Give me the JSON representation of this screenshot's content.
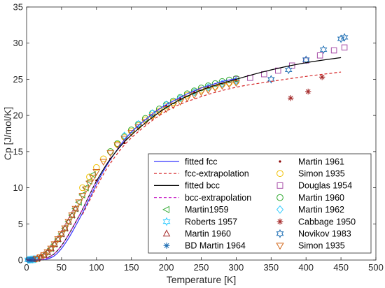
{
  "chart_data": {
    "type": "scatter",
    "xlabel": "Temperature [K]",
    "ylabel": "Cp [J/mol/K]",
    "xlim": [
      0,
      500
    ],
    "ylim": [
      0,
      35
    ],
    "xticks": [
      "0",
      "50",
      "100",
      "150",
      "200",
      "250",
      "300",
      "350",
      "400",
      "450",
      "500"
    ],
    "yticks": [
      "0",
      "5",
      "10",
      "15",
      "20",
      "25",
      "30",
      "35"
    ],
    "grid": false,
    "legend_position": "bottom-right",
    "series": [
      {
        "name": "fitted fcc",
        "kind": "line",
        "dash": "solid",
        "color": "#3333ff",
        "x": [
          0,
          20,
          30,
          40,
          50,
          60,
          70,
          80,
          90,
          100,
          110,
          120,
          130,
          140,
          150,
          160,
          170,
          180,
          190,
          200,
          210,
          220,
          230,
          240,
          250,
          260,
          270,
          280,
          290,
          300
        ],
        "y": [
          0,
          0.02,
          0.15,
          0.6,
          1.6,
          3.0,
          4.7,
          6.5,
          8.5,
          10.5,
          12.3,
          13.9,
          15.3,
          16.6,
          17.7,
          18.6,
          19.4,
          20.2,
          20.9,
          21.5,
          22.0,
          22.5,
          23.0,
          23.4,
          23.8,
          24.1,
          24.4,
          24.7,
          24.9,
          25.1
        ]
      },
      {
        "name": "fcc-extrapolation",
        "kind": "line",
        "dash": "dashed",
        "color": "#d62728",
        "x": [
          80,
          90,
          100,
          120,
          150,
          200,
          250,
          300,
          350,
          400,
          450
        ],
        "y": [
          6.3,
          8.2,
          10.1,
          13.4,
          16.9,
          20.6,
          22.6,
          23.9,
          24.7,
          25.4,
          26.0
        ]
      },
      {
        "name": "fitted bcc",
        "kind": "line",
        "dash": "solid",
        "color": "#000000",
        "x": [
          30,
          40,
          50,
          60,
          70,
          80,
          90,
          100,
          120,
          150,
          200,
          250,
          300,
          350,
          400,
          450
        ],
        "y": [
          0.3,
          0.9,
          2.0,
          3.5,
          5.2,
          7.0,
          9.0,
          10.9,
          14.0,
          17.3,
          21.1,
          23.5,
          25.0,
          26.3,
          27.3,
          28.0
        ]
      },
      {
        "name": "bcc-extrapolation",
        "kind": "line",
        "dash": "dashed",
        "color": "#cc33cc",
        "x": [
          0,
          20,
          30,
          40,
          50,
          60,
          70,
          80,
          90,
          100
        ],
        "y": [
          0,
          0.05,
          0.3,
          0.9,
          2.0,
          3.5,
          5.2,
          7.0,
          9.0,
          10.9
        ]
      },
      {
        "name": "Martin1959",
        "kind": "marker",
        "marker": "triangle-left",
        "color": "#33aa33",
        "x": [
          5,
          10,
          15,
          20,
          25,
          30,
          35,
          40,
          45,
          50,
          55,
          60,
          65,
          70,
          75,
          80,
          85,
          90,
          95
        ],
        "y": [
          0.05,
          0.1,
          0.2,
          0.4,
          0.7,
          1.1,
          1.6,
          2.2,
          2.9,
          3.6,
          4.4,
          5.3,
          6.2,
          7.1,
          8.0,
          9.0,
          10.0,
          10.9,
          11.8
        ]
      },
      {
        "name": "Roberts 1957",
        "kind": "marker",
        "marker": "hexagram",
        "color": "#33ccff",
        "x": [
          2,
          4,
          6,
          8,
          10,
          12
        ],
        "y": [
          0.02,
          0.04,
          0.06,
          0.08,
          0.1,
          0.13
        ]
      },
      {
        "name": "Martin 1960",
        "kind": "marker",
        "marker": "triangle-up",
        "color": "#a52a2a",
        "x": [
          10,
          15,
          20,
          25,
          30,
          35,
          40,
          45,
          50,
          55,
          60,
          65,
          70
        ],
        "y": [
          0.1,
          0.2,
          0.4,
          0.7,
          1.1,
          1.6,
          2.2,
          2.9,
          3.6,
          4.4,
          5.3,
          6.2,
          7.1
        ]
      },
      {
        "name": "BD Martin 1964",
        "kind": "marker",
        "marker": "asterisk",
        "color": "#1f6fb4",
        "x": [
          2,
          4,
          6,
          8,
          10
        ],
        "y": [
          0.02,
          0.04,
          0.06,
          0.08,
          0.1
        ]
      },
      {
        "name": "Martin 1961",
        "kind": "marker",
        "marker": "dot",
        "color": "#8b0000",
        "x": [
          100,
          120,
          140,
          160,
          180,
          200,
          220,
          240,
          260,
          280,
          300
        ],
        "y": [
          11.0,
          14.0,
          16.2,
          18.3,
          19.9,
          21.3,
          22.4,
          23.2,
          23.9,
          24.4,
          24.8
        ]
      },
      {
        "name": "Simon 1935",
        "kind": "marker",
        "marker": "circle",
        "color": "#f0c000",
        "x": [
          80,
          90,
          100,
          110,
          120,
          130,
          140,
          150,
          160,
          170,
          180,
          190,
          200,
          210,
          220,
          230,
          240,
          250,
          260,
          270,
          280,
          290,
          300
        ],
        "y": [
          10.0,
          11.5,
          12.8,
          14.0,
          15.0,
          16.0,
          17.0,
          17.8,
          18.6,
          19.4,
          20.0,
          20.6,
          21.3,
          21.8,
          22.3,
          22.8,
          23.2,
          23.5,
          23.8,
          24.0,
          24.3,
          24.5,
          24.7
        ]
      },
      {
        "name": "Douglas 1954",
        "kind": "marker",
        "marker": "square",
        "color": "#a64ca6",
        "x": [
          300,
          320,
          340,
          360,
          380,
          400,
          420,
          440,
          455
        ],
        "y": [
          25.0,
          25.2,
          25.7,
          26.2,
          26.9,
          27.6,
          28.3,
          29.0,
          29.4
        ]
      },
      {
        "name": "Martin 1960",
        "kind": "marker",
        "marker": "circle",
        "color": "#33aa33",
        "x": [
          120,
          130,
          140,
          150,
          160,
          170,
          180,
          190,
          200,
          210,
          220,
          230,
          240,
          250,
          260,
          270,
          280,
          290,
          300
        ],
        "y": [
          15.0,
          16.1,
          17.1,
          18.0,
          18.8,
          19.6,
          20.3,
          20.9,
          21.5,
          22.0,
          22.5,
          23.0,
          23.4,
          23.8,
          24.1,
          24.4,
          24.7,
          24.9,
          25.1
        ]
      },
      {
        "name": "Martin 1962",
        "kind": "marker",
        "marker": "diamond",
        "color": "#33ccff",
        "x": [
          140,
          160,
          180,
          200,
          220,
          240,
          260,
          280,
          300
        ],
        "y": [
          17.2,
          18.8,
          20.3,
          21.5,
          22.4,
          23.2,
          23.9,
          24.4,
          24.8
        ]
      },
      {
        "name": "Cabbage 1950",
        "kind": "marker",
        "marker": "asterisk",
        "color": "#a52a2a",
        "x": [
          378,
          403,
          423
        ],
        "y": [
          22.4,
          23.3,
          25.3
        ]
      },
      {
        "name": "Novikov 1983",
        "kind": "marker",
        "marker": "hexagram",
        "color": "#1f6fb4",
        "x": [
          350,
          375,
          400,
          425,
          450,
          455
        ],
        "y": [
          25.0,
          26.3,
          27.7,
          29.1,
          30.6,
          30.8
        ]
      },
      {
        "name": "Simon 1935",
        "kind": "marker",
        "marker": "triangle-down",
        "color": "#d2691e",
        "x": [
          15,
          20,
          25,
          30,
          35,
          40,
          45,
          50,
          55,
          60,
          65,
          70,
          75,
          80,
          85,
          90,
          95,
          100,
          110,
          120,
          130,
          140,
          150,
          160,
          170,
          180,
          190,
          200,
          210,
          220,
          230,
          240,
          250,
          260,
          270,
          280,
          290,
          300
        ],
        "y": [
          0.2,
          0.4,
          0.7,
          1.1,
          1.6,
          2.2,
          2.9,
          3.6,
          4.4,
          5.3,
          6.2,
          7.1,
          8.0,
          8.9,
          9.8,
          10.6,
          11.4,
          12.2,
          13.6,
          14.8,
          15.9,
          16.8,
          17.6,
          18.4,
          19.1,
          19.8,
          20.4,
          20.9,
          21.4,
          21.9,
          22.4,
          22.8,
          23.2,
          23.5,
          23.8,
          24.1,
          24.3,
          24.5
        ]
      }
    ]
  }
}
